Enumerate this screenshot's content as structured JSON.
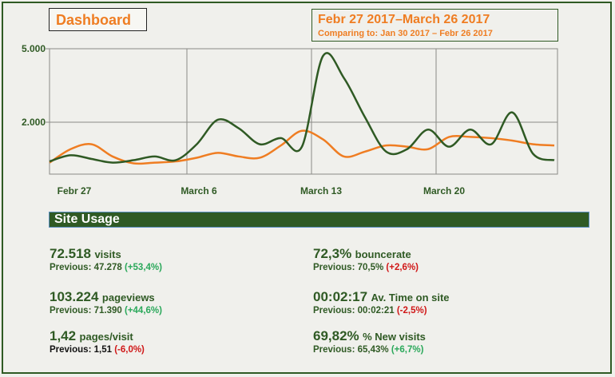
{
  "header": {
    "title": "Dashboard",
    "range": "Febr 27 2017–March 26 2017",
    "comparing": "Comparing to: Jan 30 2017 – Febr 26 2017"
  },
  "chart_data": {
    "type": "line",
    "y_ticks": [
      "5.000",
      "2.000"
    ],
    "x_ticks": [
      "Febr 27",
      "March 6",
      "March 13",
      "March 20"
    ],
    "grid": true,
    "colors": {
      "current": "#2f5a24",
      "previous": "#ef7d22"
    },
    "series": [
      {
        "values": [
          400,
          650,
          500,
          350,
          450,
          600,
          450,
          1100,
          2100,
          1750,
          1100,
          1350,
          1000,
          4700,
          3800,
          2200,
          800,
          900,
          1700,
          1000,
          1700,
          1100,
          2400,
          700,
          450
        ]
      },
      {
        "values": [
          350,
          900,
          1100,
          600,
          320,
          350,
          400,
          550,
          750,
          600,
          550,
          1050,
          1650,
          1300,
          600,
          800,
          1050,
          1000,
          900,
          1400,
          1400,
          1350,
          1250,
          1100,
          1050
        ]
      }
    ]
  },
  "section": {
    "title": "Site Usage"
  },
  "metrics": {
    "visits": {
      "value": "72.518",
      "unit": "visits",
      "prev_label": "Previous: 47.278",
      "change": "(+53,4%)"
    },
    "pageviews": {
      "value": "103.224",
      "unit": "pageviews",
      "prev_label": "Previous: 71.390",
      "change": "(+44,6%)"
    },
    "pages_visit": {
      "value": "1,42",
      "unit": "pages/visit",
      "prev_label": "Previous: 1,51",
      "change": "(-6,0%)"
    },
    "bouncerate": {
      "value": "72,3%",
      "unit": "bouncerate",
      "prev_label": "Previous: 70,5%",
      "change": "(+2,6%)"
    },
    "time_on_site": {
      "value": "00:02:17",
      "unit": "Av. Time on site",
      "prev_label": "Previous: 00:02:21",
      "change": "(-2,5%)"
    },
    "new_visits": {
      "value": "69,82%",
      "unit": "% New visits",
      "prev_label": "Previous: 65,43%",
      "change": "(+6,7%)"
    }
  }
}
